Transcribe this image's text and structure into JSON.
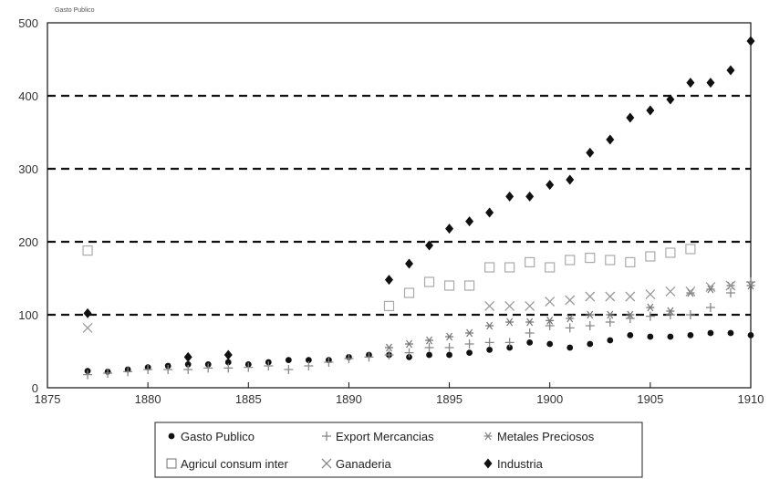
{
  "chart_data": {
    "type": "scatter",
    "title": "",
    "xlabel": "",
    "ylabel": "",
    "top_note": "Gasto Publico",
    "xlim": [
      1875,
      1910
    ],
    "ylim": [
      0,
      500
    ],
    "x_ticks": [
      "1875",
      "1880",
      "1885",
      "1890",
      "1895",
      "1900",
      "1905",
      "1910"
    ],
    "y_ticks": [
      "0",
      "100",
      "200",
      "300",
      "400",
      "500"
    ],
    "grid": "horizontal dashed",
    "legend_position": "bottom",
    "series": [
      {
        "name": "Gasto Publico",
        "marker": "dot",
        "color": "#111111",
        "points": [
          [
            1877,
            23
          ],
          [
            1878,
            22
          ],
          [
            1879,
            25
          ],
          [
            1880,
            28
          ],
          [
            1881,
            30
          ],
          [
            1882,
            32
          ],
          [
            1883,
            32
          ],
          [
            1884,
            35
          ],
          [
            1885,
            32
          ],
          [
            1886,
            35
          ],
          [
            1887,
            38
          ],
          [
            1888,
            38
          ],
          [
            1889,
            38
          ],
          [
            1890,
            42
          ],
          [
            1891,
            45
          ],
          [
            1892,
            45
          ],
          [
            1893,
            42
          ],
          [
            1894,
            45
          ],
          [
            1895,
            45
          ],
          [
            1896,
            48
          ],
          [
            1897,
            52
          ],
          [
            1898,
            55
          ],
          [
            1899,
            62
          ],
          [
            1900,
            60
          ],
          [
            1901,
            55
          ],
          [
            1902,
            60
          ],
          [
            1903,
            65
          ],
          [
            1904,
            72
          ],
          [
            1905,
            70
          ],
          [
            1906,
            70
          ],
          [
            1907,
            72
          ],
          [
            1908,
            75
          ],
          [
            1909,
            75
          ],
          [
            1910,
            72
          ]
        ]
      },
      {
        "name": "Export Mercancias",
        "marker": "plus",
        "color": "#888888",
        "points": [
          [
            1877,
            18
          ],
          [
            1878,
            20
          ],
          [
            1879,
            22
          ],
          [
            1880,
            25
          ],
          [
            1881,
            25
          ],
          [
            1882,
            25
          ],
          [
            1883,
            27
          ],
          [
            1884,
            27
          ],
          [
            1885,
            28
          ],
          [
            1886,
            30
          ],
          [
            1887,
            25
          ],
          [
            1888,
            30
          ],
          [
            1889,
            35
          ],
          [
            1890,
            40
          ],
          [
            1891,
            42
          ],
          [
            1892,
            45
          ],
          [
            1893,
            48
          ],
          [
            1894,
            55
          ],
          [
            1895,
            55
          ],
          [
            1896,
            60
          ],
          [
            1897,
            62
          ],
          [
            1898,
            62
          ],
          [
            1899,
            75
          ],
          [
            1900,
            85
          ],
          [
            1901,
            82
          ],
          [
            1902,
            85
          ],
          [
            1903,
            90
          ],
          [
            1904,
            95
          ],
          [
            1905,
            98
          ],
          [
            1906,
            100
          ],
          [
            1907,
            100
          ],
          [
            1908,
            110
          ],
          [
            1909,
            130
          ],
          [
            1910,
            145
          ]
        ]
      },
      {
        "name": "Metales Preciosos",
        "marker": "star",
        "color": "#777777",
        "points": [
          [
            1892,
            55
          ],
          [
            1893,
            60
          ],
          [
            1894,
            65
          ],
          [
            1895,
            70
          ],
          [
            1896,
            75
          ],
          [
            1897,
            85
          ],
          [
            1898,
            90
          ],
          [
            1899,
            90
          ],
          [
            1900,
            92
          ],
          [
            1901,
            95
          ],
          [
            1902,
            100
          ],
          [
            1903,
            100
          ],
          [
            1904,
            100
          ],
          [
            1905,
            110
          ],
          [
            1906,
            105
          ],
          [
            1907,
            130
          ],
          [
            1908,
            135
          ],
          [
            1909,
            140
          ],
          [
            1910,
            140
          ]
        ]
      },
      {
        "name": "Agricul consum inter",
        "marker": "square",
        "color": "#aaaaaa",
        "points": [
          [
            1877,
            188
          ],
          [
            1892,
            112
          ],
          [
            1893,
            130
          ],
          [
            1894,
            145
          ],
          [
            1895,
            140
          ],
          [
            1896,
            140
          ],
          [
            1897,
            165
          ],
          [
            1898,
            165
          ],
          [
            1899,
            172
          ],
          [
            1900,
            165
          ],
          [
            1901,
            175
          ],
          [
            1902,
            178
          ],
          [
            1903,
            175
          ],
          [
            1904,
            172
          ],
          [
            1905,
            180
          ],
          [
            1906,
            185
          ],
          [
            1907,
            190
          ]
        ]
      },
      {
        "name": "Ganaderia",
        "marker": "cross",
        "color": "#999999",
        "points": [
          [
            1877,
            82
          ],
          [
            1897,
            112
          ],
          [
            1898,
            112
          ],
          [
            1899,
            112
          ],
          [
            1900,
            118
          ],
          [
            1901,
            120
          ],
          [
            1902,
            125
          ],
          [
            1903,
            125
          ],
          [
            1904,
            125
          ],
          [
            1905,
            128
          ],
          [
            1906,
            132
          ],
          [
            1907,
            132
          ],
          [
            1908,
            138
          ],
          [
            1909,
            140
          ]
        ]
      },
      {
        "name": "Industria",
        "marker": "diamond",
        "color": "#111111",
        "points": [
          [
            1877,
            102
          ],
          [
            1882,
            42
          ],
          [
            1884,
            45
          ],
          [
            1892,
            148
          ],
          [
            1893,
            170
          ],
          [
            1894,
            195
          ],
          [
            1895,
            218
          ],
          [
            1896,
            228
          ],
          [
            1897,
            240
          ],
          [
            1898,
            262
          ],
          [
            1899,
            262
          ],
          [
            1900,
            278
          ],
          [
            1901,
            285
          ],
          [
            1902,
            322
          ],
          [
            1903,
            340
          ],
          [
            1904,
            370
          ],
          [
            1905,
            380
          ],
          [
            1906,
            395
          ],
          [
            1907,
            418
          ],
          [
            1908,
            418
          ],
          [
            1909,
            435
          ],
          [
            1910,
            475
          ]
        ]
      }
    ]
  }
}
